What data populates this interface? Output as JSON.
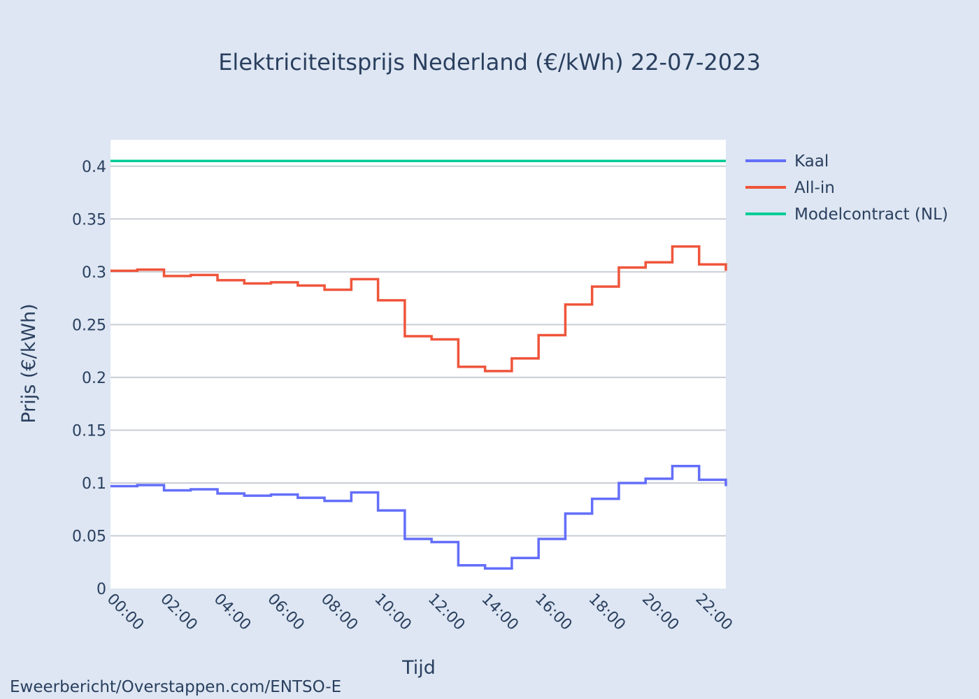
{
  "chart_data": {
    "type": "line",
    "title": "Elektriciteitsprijs Nederland (€/kWh) 22-07-2023",
    "xlabel": "Tijd",
    "ylabel": "Prijs (€/kWh)",
    "ylim": [
      0,
      0.425
    ],
    "xlim": [
      0,
      23
    ],
    "step": "hv",
    "y_ticks": [
      {
        "value": 0,
        "label": "0"
      },
      {
        "value": 0.05,
        "label": "0.05"
      },
      {
        "value": 0.1,
        "label": "0.1"
      },
      {
        "value": 0.15,
        "label": "0.15"
      },
      {
        "value": 0.2,
        "label": "0.2"
      },
      {
        "value": 0.25,
        "label": "0.25"
      },
      {
        "value": 0.3,
        "label": "0.3"
      },
      {
        "value": 0.35,
        "label": "0.35"
      },
      {
        "value": 0.4,
        "label": "0.4"
      }
    ],
    "x_ticks": [
      {
        "value": 0,
        "label": "00:00"
      },
      {
        "value": 2,
        "label": "02:00"
      },
      {
        "value": 4,
        "label": "04:00"
      },
      {
        "value": 6,
        "label": "06:00"
      },
      {
        "value": 8,
        "label": "08:00"
      },
      {
        "value": 10,
        "label": "10:00"
      },
      {
        "value": 12,
        "label": "12:00"
      },
      {
        "value": 14,
        "label": "14:00"
      },
      {
        "value": 16,
        "label": "16:00"
      },
      {
        "value": 18,
        "label": "18:00"
      },
      {
        "value": 20,
        "label": "20:00"
      },
      {
        "value": 22,
        "label": "22:00"
      }
    ],
    "x": [
      0,
      1,
      2,
      3,
      4,
      5,
      6,
      7,
      8,
      9,
      10,
      11,
      12,
      13,
      14,
      15,
      16,
      17,
      18,
      19,
      20,
      21,
      22,
      23
    ],
    "series": [
      {
        "name": "Kaal",
        "color": "#636efa",
        "values": [
          0.097,
          0.098,
          0.093,
          0.094,
          0.09,
          0.088,
          0.089,
          0.086,
          0.083,
          0.091,
          0.074,
          0.047,
          0.044,
          0.022,
          0.019,
          0.029,
          0.047,
          0.071,
          0.085,
          0.1,
          0.104,
          0.116,
          0.103,
          0.097
        ]
      },
      {
        "name": "All-in",
        "color": "#ef553b",
        "values": [
          0.301,
          0.302,
          0.296,
          0.297,
          0.292,
          0.289,
          0.29,
          0.287,
          0.283,
          0.293,
          0.273,
          0.239,
          0.236,
          0.21,
          0.206,
          0.218,
          0.24,
          0.269,
          0.286,
          0.304,
          0.309,
          0.324,
          0.307,
          0.301
        ]
      },
      {
        "name": "Modelcontract (NL)",
        "color": "#00cc96",
        "values": [
          0.405,
          0.405,
          0.405,
          0.405,
          0.405,
          0.405,
          0.405,
          0.405,
          0.405,
          0.405,
          0.405,
          0.405,
          0.405,
          0.405,
          0.405,
          0.405,
          0.405,
          0.405,
          0.405,
          0.405,
          0.405,
          0.405,
          0.405,
          0.405
        ]
      }
    ],
    "legend_position": "top-right",
    "grid": true,
    "source": "Eweerbericht/Overstappen.com/ENTSO-E"
  }
}
